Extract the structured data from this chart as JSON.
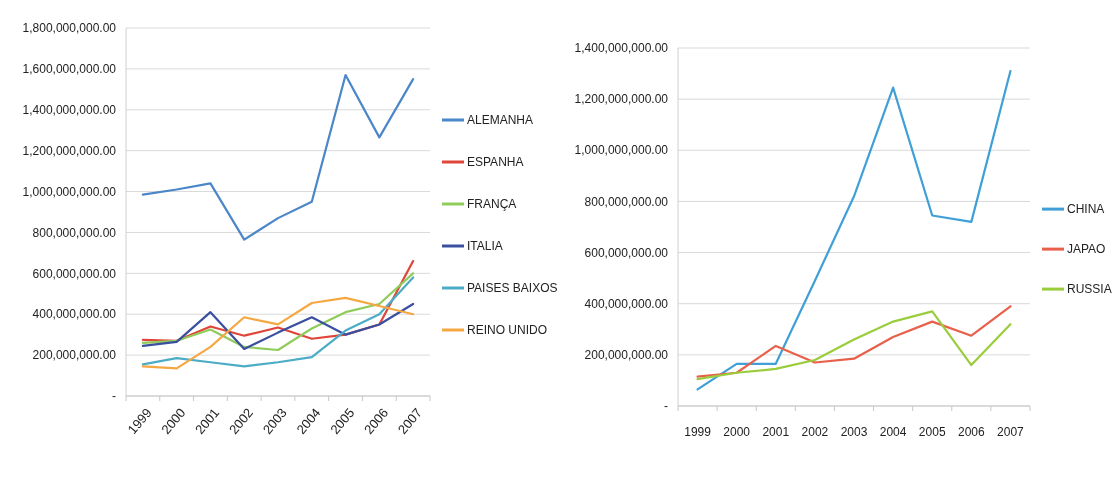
{
  "chart_data": [
    {
      "type": "line",
      "categories": [
        "1999",
        "2000",
        "2001",
        "2002",
        "2003",
        "2004",
        "2005",
        "2006",
        "2007"
      ],
      "ylim": [
        0,
        1800000000
      ],
      "yticks": [
        {
          "value": 0,
          "label": "-"
        },
        {
          "value": 200000000,
          "label": "200,000,000.00"
        },
        {
          "value": 400000000,
          "label": "400,000,000.00"
        },
        {
          "value": 600000000,
          "label": "600,000,000.00"
        },
        {
          "value": 800000000,
          "label": "800,000,000.00"
        },
        {
          "value": 1000000000,
          "label": "1,000,000,000.00"
        },
        {
          "value": 1200000000,
          "label": "1,200,000,000.00"
        },
        {
          "value": 1400000000,
          "label": "1,400,000,000.00"
        },
        {
          "value": 1600000000,
          "label": "1,600,000,000.00"
        },
        {
          "value": 1800000000,
          "label": "1,800,000,000.00"
        }
      ],
      "grid": "y",
      "legend": "right",
      "marker": "none",
      "series": [
        {
          "name": "ALEMANHA",
          "color": "#4a86c8",
          "values": [
            985000000,
            1010000000,
            1040000000,
            765000000,
            870000000,
            950000000,
            1570000000,
            1265000000,
            1550000000
          ]
        },
        {
          "name": "ESPANHA",
          "color": "#e0453a",
          "values": [
            275000000,
            270000000,
            340000000,
            295000000,
            335000000,
            280000000,
            300000000,
            350000000,
            660000000
          ]
        },
        {
          "name": "FRANÇA",
          "color": "#8fcc5a",
          "values": [
            260000000,
            270000000,
            325000000,
            240000000,
            225000000,
            330000000,
            410000000,
            450000000,
            600000000
          ]
        },
        {
          "name": "ITALIA",
          "color": "#3a4fa0",
          "values": [
            245000000,
            265000000,
            410000000,
            230000000,
            310000000,
            385000000,
            300000000,
            350000000,
            450000000
          ]
        },
        {
          "name": "PAISES BAIXOS",
          "color": "#4bacc6",
          "values": [
            155000000,
            185000000,
            165000000,
            145000000,
            165000000,
            190000000,
            320000000,
            400000000,
            580000000
          ]
        },
        {
          "name": "REINO UNIDO",
          "color": "#f5a742",
          "values": [
            145000000,
            135000000,
            240000000,
            385000000,
            350000000,
            455000000,
            480000000,
            440000000,
            400000000
          ]
        }
      ]
    },
    {
      "type": "line",
      "categories": [
        "1999",
        "2000",
        "2001",
        "2002",
        "2003",
        "2004",
        "2005",
        "2006",
        "2007"
      ],
      "ylim": [
        0,
        1400000000
      ],
      "yticks": [
        {
          "value": 0,
          "label": "-"
        },
        {
          "value": 200000000,
          "label": "200,000,000.00"
        },
        {
          "value": 400000000,
          "label": "400,000,000.00"
        },
        {
          "value": 600000000,
          "label": "600,000,000.00"
        },
        {
          "value": 800000000,
          "label": "800,000,000.00"
        },
        {
          "value": 1000000000,
          "label": "1,000,000,000.00"
        },
        {
          "value": 1200000000,
          "label": "1,200,000,000.00"
        },
        {
          "value": 1400000000,
          "label": "1,400,000,000.00"
        }
      ],
      "grid": "y",
      "legend": "right",
      "marker": "none",
      "series": [
        {
          "name": "CHINA",
          "color": "#3f9fd6",
          "values": [
            65000000,
            165000000,
            165000000,
            490000000,
            820000000,
            1245000000,
            745000000,
            720000000,
            1310000000
          ]
        },
        {
          "name": "JAPAO",
          "color": "#e8604a",
          "values": [
            115000000,
            130000000,
            235000000,
            170000000,
            185000000,
            270000000,
            330000000,
            275000000,
            390000000
          ]
        },
        {
          "name": "RUSSIA",
          "color": "#9acd3c",
          "values": [
            105000000,
            130000000,
            145000000,
            180000000,
            260000000,
            330000000,
            370000000,
            160000000,
            320000000
          ]
        }
      ]
    }
  ]
}
